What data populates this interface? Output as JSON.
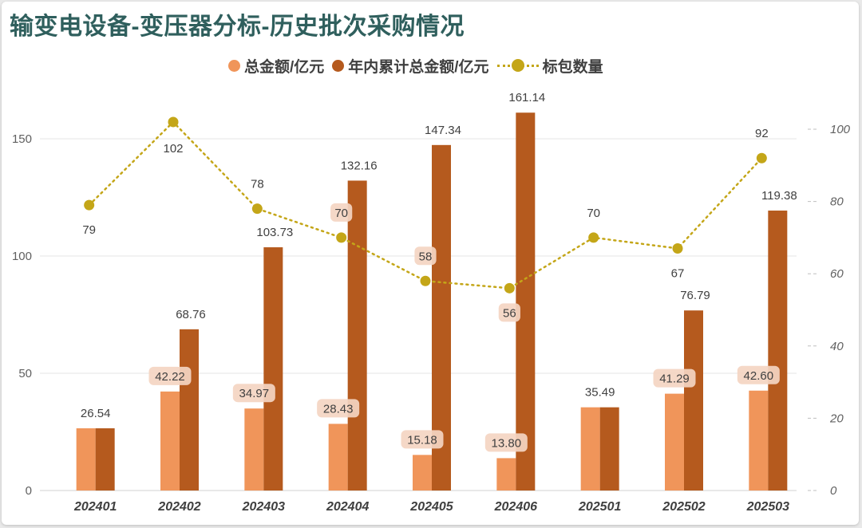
{
  "title": "输变电设备-变压器分标-历史批次采购情况",
  "legend": {
    "series1": "总金额/亿元",
    "series2": "年内累计总金额/亿元",
    "series3": "标包数量"
  },
  "colors": {
    "series1": "#f0955a",
    "series2": "#b55a1e",
    "series3": "#c4a618",
    "title": "#2f5f5d",
    "grid": "#e6e6e6"
  },
  "chart_data": {
    "type": "bar",
    "categories": [
      "202401",
      "202402",
      "202403",
      "202404",
      "202405",
      "202406",
      "202501",
      "202502",
      "202503"
    ],
    "series": [
      {
        "name": "总金额/亿元",
        "type": "bar",
        "axis": "left",
        "values": [
          26.54,
          42.22,
          34.97,
          28.43,
          15.18,
          13.8,
          35.49,
          41.29,
          42.6
        ],
        "labels": [
          "26.54",
          "42.22",
          "34.97",
          "28.43",
          "15.18",
          "13.80",
          "35.49",
          "41.29",
          "42.60"
        ]
      },
      {
        "name": "年内累计总金额/亿元",
        "type": "bar",
        "axis": "left",
        "values": [
          26.54,
          68.76,
          103.73,
          132.16,
          147.34,
          161.14,
          35.49,
          76.79,
          119.38
        ],
        "labels": [
          "",
          "68.76",
          "103.73",
          "132.16",
          "147.34",
          "161.14",
          "",
          "76.79",
          "119.38"
        ]
      },
      {
        "name": "标包数量",
        "type": "line",
        "axis": "right",
        "values": [
          79,
          102,
          78,
          70,
          58,
          56,
          70,
          67,
          92
        ],
        "labels": [
          "79",
          "102",
          "78",
          "70",
          "58",
          "56",
          "70",
          "67",
          "92"
        ]
      }
    ],
    "left_axis": {
      "ylim": [
        0,
        170
      ],
      "ticks": [
        "0",
        "50",
        "100",
        "150"
      ]
    },
    "right_axis": {
      "ylim": [
        0,
        106.25
      ],
      "ticks": [
        "0",
        "20",
        "40",
        "60",
        "80",
        "100"
      ]
    },
    "grid": true,
    "legend_position": "top-center"
  }
}
